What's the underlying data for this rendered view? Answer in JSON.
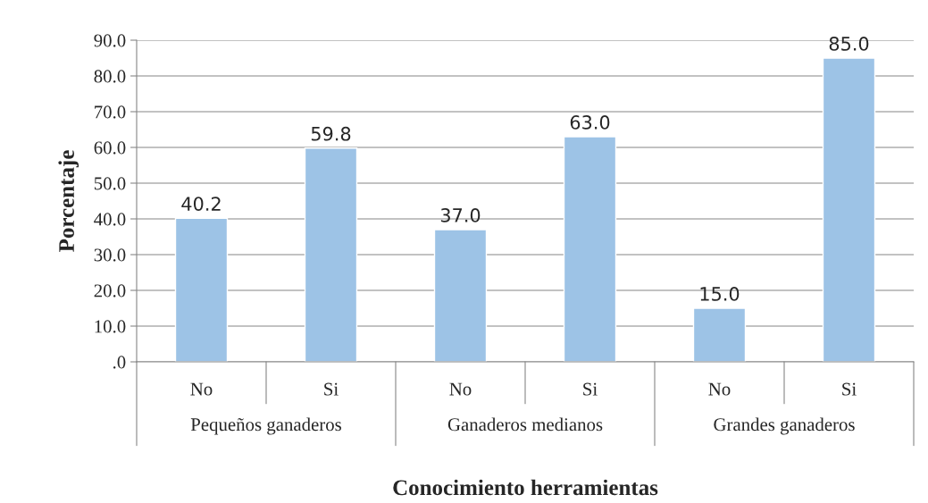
{
  "chart_data": {
    "type": "bar",
    "categories": [
      "No",
      "Si",
      "No",
      "Si",
      "No",
      "Si"
    ],
    "values": [
      40.2,
      59.8,
      37.0,
      63.0,
      15.0,
      85.0
    ],
    "value_labels": [
      "40.2",
      "59.8",
      "37.0",
      "63.0",
      "15.0",
      "85.0"
    ],
    "color": "#9dc3e6",
    "xlabel": "Conocimiento herramientas",
    "ylabel": "Porcentaje",
    "annotations": [
      "Pequeños ganaderos",
      "Ganaderos medianos",
      "Grandes ganaderos"
    ],
    "ylim": [
      0,
      90
    ],
    "yticks": [
      {
        "value": 0,
        "label": ".0"
      },
      {
        "value": 10,
        "label": "10.0"
      },
      {
        "value": 20,
        "label": "20.0"
      },
      {
        "value": 30,
        "label": "30.0"
      },
      {
        "value": 40,
        "label": "40.0"
      },
      {
        "value": 50,
        "label": "50.0"
      },
      {
        "value": 60,
        "label": "60.0"
      },
      {
        "value": 70,
        "label": "70.0"
      },
      {
        "value": 80,
        "label": "80.0"
      },
      {
        "value": 90,
        "label": "90.0"
      }
    ],
    "grid": "y"
  }
}
